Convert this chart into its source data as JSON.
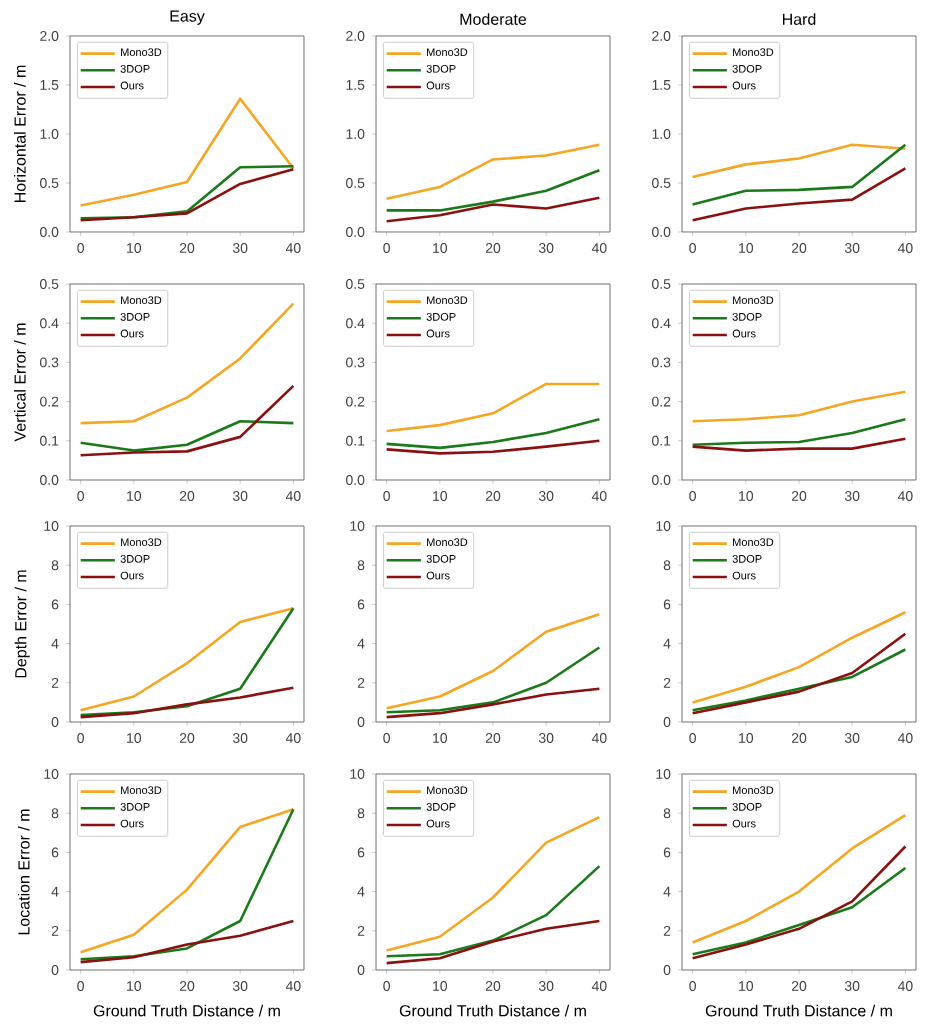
{
  "chart_data": [
    {
      "type": "line",
      "title": "Easy",
      "ylabel": "Horizontal Error / m",
      "x": [
        0,
        10,
        20,
        30,
        40
      ],
      "xlim": [
        -2,
        42
      ],
      "xticks": [
        0,
        10,
        20,
        30,
        40
      ],
      "ylim": [
        0,
        2
      ],
      "yticks": [
        {
          "value": 0,
          "label": "0.0"
        },
        {
          "value": 0.5,
          "label": "0.5"
        },
        {
          "value": 1,
          "label": "1.0"
        },
        {
          "value": 1.5,
          "label": "1.5"
        },
        {
          "value": 2,
          "label": "2.0"
        }
      ],
      "legend": "top left",
      "series": [
        {
          "name": "Mono3D",
          "color": "#f5a623",
          "values": [
            0.27,
            0.38,
            0.51,
            1.36,
            0.65
          ]
        },
        {
          "name": "3DOP",
          "color": "#1a7a1a",
          "values": [
            0.14,
            0.15,
            0.21,
            0.66,
            0.67
          ]
        },
        {
          "name": "Ours",
          "color": "#8b1010",
          "values": [
            0.12,
            0.15,
            0.19,
            0.49,
            0.64
          ]
        }
      ]
    },
    {
      "type": "line",
      "title": "Moderate",
      "x": [
        0,
        10,
        20,
        30,
        40
      ],
      "xlim": [
        -2,
        42
      ],
      "xticks": [
        0,
        10,
        20,
        30,
        40
      ],
      "ylim": [
        0,
        2
      ],
      "yticks": [
        {
          "value": 0,
          "label": "0.0"
        },
        {
          "value": 0.5,
          "label": "0.5"
        },
        {
          "value": 1,
          "label": "1.0"
        },
        {
          "value": 1.5,
          "label": "1.5"
        },
        {
          "value": 2,
          "label": "2.0"
        }
      ],
      "legend": "top left",
      "series": [
        {
          "name": "Mono3D",
          "color": "#f5a623",
          "values": [
            0.34,
            0.46,
            0.74,
            0.78,
            0.89
          ]
        },
        {
          "name": "3DOP",
          "color": "#1a7a1a",
          "values": [
            0.22,
            0.22,
            0.31,
            0.42,
            0.63
          ]
        },
        {
          "name": "Ours",
          "color": "#8b1010",
          "values": [
            0.11,
            0.17,
            0.28,
            0.24,
            0.35
          ]
        }
      ]
    },
    {
      "type": "line",
      "title": "Hard",
      "x": [
        0,
        10,
        20,
        30,
        40
      ],
      "xlim": [
        -2,
        42
      ],
      "xticks": [
        0,
        10,
        20,
        30,
        40
      ],
      "ylim": [
        0,
        2
      ],
      "yticks": [
        {
          "value": 0,
          "label": "0.0"
        },
        {
          "value": 0.5,
          "label": "0.5"
        },
        {
          "value": 1,
          "label": "1.0"
        },
        {
          "value": 1.5,
          "label": "1.5"
        },
        {
          "value": 2,
          "label": "2.0"
        }
      ],
      "legend": "top left",
      "series": [
        {
          "name": "Mono3D",
          "color": "#f5a623",
          "values": [
            0.56,
            0.69,
            0.75,
            0.89,
            0.85
          ]
        },
        {
          "name": "3DOP",
          "color": "#1a7a1a",
          "values": [
            0.28,
            0.42,
            0.43,
            0.46,
            0.89
          ]
        },
        {
          "name": "Ours",
          "color": "#8b1010",
          "values": [
            0.12,
            0.24,
            0.29,
            0.33,
            0.65
          ]
        }
      ]
    },
    {
      "type": "line",
      "ylabel": "Vertical Error / m",
      "x": [
        0,
        10,
        20,
        30,
        40
      ],
      "xlim": [
        -2,
        42
      ],
      "xticks": [
        0,
        10,
        20,
        30,
        40
      ],
      "ylim": [
        0,
        0.5
      ],
      "yticks": [
        {
          "value": 0,
          "label": "0.0"
        },
        0.1,
        0.2,
        0.3,
        0.4,
        0.5
      ],
      "legend": "top left",
      "series": [
        {
          "name": "Mono3D",
          "color": "#f5a623",
          "values": [
            0.145,
            0.15,
            0.21,
            0.31,
            0.45
          ]
        },
        {
          "name": "3DOP",
          "color": "#1a7a1a",
          "values": [
            0.095,
            0.075,
            0.09,
            0.15,
            0.145
          ]
        },
        {
          "name": "Ours",
          "color": "#8b1010",
          "values": [
            0.063,
            0.07,
            0.073,
            0.11,
            0.24
          ]
        }
      ]
    },
    {
      "type": "line",
      "x": [
        0,
        10,
        20,
        30,
        40
      ],
      "xlim": [
        -2,
        42
      ],
      "xticks": [
        0,
        10,
        20,
        30,
        40
      ],
      "ylim": [
        0,
        0.5
      ],
      "yticks": [
        {
          "value": 0,
          "label": "0.0"
        },
        0.1,
        0.2,
        0.3,
        0.4,
        0.5
      ],
      "legend": "top left",
      "series": [
        {
          "name": "Mono3D",
          "color": "#f5a623",
          "values": [
            0.125,
            0.14,
            0.17,
            0.245,
            0.245
          ]
        },
        {
          "name": "3DOP",
          "color": "#1a7a1a",
          "values": [
            0.092,
            0.082,
            0.097,
            0.12,
            0.155
          ]
        },
        {
          "name": "Ours",
          "color": "#8b1010",
          "values": [
            0.078,
            0.068,
            0.072,
            0.085,
            0.1
          ]
        }
      ]
    },
    {
      "type": "line",
      "x": [
        0,
        10,
        20,
        30,
        40
      ],
      "xlim": [
        -2,
        42
      ],
      "xticks": [
        0,
        10,
        20,
        30,
        40
      ],
      "ylim": [
        0,
        0.5
      ],
      "yticks": [
        {
          "value": 0,
          "label": "0.0"
        },
        0.1,
        0.2,
        0.3,
        0.4,
        0.5
      ],
      "legend": "top left",
      "series": [
        {
          "name": "Mono3D",
          "color": "#f5a623",
          "values": [
            0.15,
            0.155,
            0.165,
            0.2,
            0.225
          ]
        },
        {
          "name": "3DOP",
          "color": "#1a7a1a",
          "values": [
            0.09,
            0.095,
            0.097,
            0.12,
            0.155
          ]
        },
        {
          "name": "Ours",
          "color": "#8b1010",
          "values": [
            0.085,
            0.075,
            0.08,
            0.08,
            0.105
          ]
        }
      ]
    },
    {
      "type": "line",
      "ylabel": "Depth Error / m",
      "x": [
        0,
        10,
        20,
        30,
        40
      ],
      "xlim": [
        -2,
        42
      ],
      "xticks": [
        0,
        10,
        20,
        30,
        40
      ],
      "ylim": [
        0,
        10
      ],
      "yticks": [
        0,
        2,
        4,
        6,
        8,
        10
      ],
      "legend": "top left",
      "series": [
        {
          "name": "Mono3D",
          "color": "#f5a623",
          "values": [
            0.6,
            1.3,
            3.0,
            5.1,
            5.8
          ]
        },
        {
          "name": "3DOP",
          "color": "#1a7a1a",
          "values": [
            0.35,
            0.5,
            0.8,
            1.7,
            5.8
          ]
        },
        {
          "name": "Ours",
          "color": "#8b1010",
          "values": [
            0.25,
            0.45,
            0.9,
            1.25,
            1.75
          ]
        }
      ]
    },
    {
      "type": "line",
      "x": [
        0,
        10,
        20,
        30,
        40
      ],
      "xlim": [
        -2,
        42
      ],
      "xticks": [
        0,
        10,
        20,
        30,
        40
      ],
      "ylim": [
        0,
        10
      ],
      "yticks": [
        0,
        2,
        4,
        6,
        8,
        10
      ],
      "legend": "top left",
      "series": [
        {
          "name": "Mono3D",
          "color": "#f5a623",
          "values": [
            0.7,
            1.3,
            2.6,
            4.6,
            5.5
          ]
        },
        {
          "name": "3DOP",
          "color": "#1a7a1a",
          "values": [
            0.5,
            0.6,
            1.0,
            2.0,
            3.8
          ]
        },
        {
          "name": "Ours",
          "color": "#8b1010",
          "values": [
            0.25,
            0.45,
            0.9,
            1.4,
            1.7
          ]
        }
      ]
    },
    {
      "type": "line",
      "x": [
        0,
        10,
        20,
        30,
        40
      ],
      "xlim": [
        -2,
        42
      ],
      "xticks": [
        0,
        10,
        20,
        30,
        40
      ],
      "ylim": [
        0,
        10
      ],
      "yticks": [
        0,
        2,
        4,
        6,
        8,
        10
      ],
      "legend": "top left",
      "series": [
        {
          "name": "Mono3D",
          "color": "#f5a623",
          "values": [
            1.0,
            1.8,
            2.8,
            4.3,
            5.6
          ]
        },
        {
          "name": "3DOP",
          "color": "#1a7a1a",
          "values": [
            0.6,
            1.1,
            1.7,
            2.3,
            3.7
          ]
        },
        {
          "name": "Ours",
          "color": "#8b1010",
          "values": [
            0.45,
            1.0,
            1.55,
            2.5,
            4.5
          ]
        }
      ]
    },
    {
      "type": "line",
      "ylabel": "Location Error / m",
      "xlabel": "Ground Truth Distance / m",
      "x": [
        0,
        10,
        20,
        30,
        40
      ],
      "xlim": [
        -2,
        42
      ],
      "xticks": [
        0,
        10,
        20,
        30,
        40
      ],
      "ylim": [
        0,
        10
      ],
      "yticks": [
        0,
        2,
        4,
        6,
        8,
        10
      ],
      "legend": "top left",
      "series": [
        {
          "name": "Mono3D",
          "color": "#f5a623",
          "values": [
            0.9,
            1.8,
            4.1,
            7.3,
            8.2
          ]
        },
        {
          "name": "3DOP",
          "color": "#1a7a1a",
          "values": [
            0.55,
            0.7,
            1.1,
            2.5,
            8.2
          ]
        },
        {
          "name": "Ours",
          "color": "#8b1010",
          "values": [
            0.4,
            0.65,
            1.3,
            1.75,
            2.5
          ]
        }
      ]
    },
    {
      "type": "line",
      "xlabel": "Ground Truth Distance / m",
      "x": [
        0,
        10,
        20,
        30,
        40
      ],
      "xlim": [
        -2,
        42
      ],
      "xticks": [
        0,
        10,
        20,
        30,
        40
      ],
      "ylim": [
        0,
        10
      ],
      "yticks": [
        0,
        2,
        4,
        6,
        8,
        10
      ],
      "legend": "top left",
      "series": [
        {
          "name": "Mono3D",
          "color": "#f5a623",
          "values": [
            1.0,
            1.7,
            3.7,
            6.5,
            7.8
          ]
        },
        {
          "name": "3DOP",
          "color": "#1a7a1a",
          "values": [
            0.7,
            0.8,
            1.5,
            2.8,
            5.3
          ]
        },
        {
          "name": "Ours",
          "color": "#8b1010",
          "values": [
            0.35,
            0.6,
            1.45,
            2.1,
            2.5
          ]
        }
      ]
    },
    {
      "type": "line",
      "xlabel": "Ground Truth Distance / m",
      "x": [
        0,
        10,
        20,
        30,
        40
      ],
      "xlim": [
        -2,
        42
      ],
      "xticks": [
        0,
        10,
        20,
        30,
        40
      ],
      "ylim": [
        0,
        10
      ],
      "yticks": [
        0,
        2,
        4,
        6,
        8,
        10
      ],
      "legend": "top left",
      "series": [
        {
          "name": "Mono3D",
          "color": "#f5a623",
          "values": [
            1.4,
            2.5,
            4.0,
            6.2,
            7.9
          ]
        },
        {
          "name": "3DOP",
          "color": "#1a7a1a",
          "values": [
            0.8,
            1.4,
            2.3,
            3.2,
            5.2
          ]
        },
        {
          "name": "Ours",
          "color": "#8b1010",
          "values": [
            0.6,
            1.3,
            2.1,
            3.5,
            6.3
          ]
        }
      ]
    }
  ]
}
